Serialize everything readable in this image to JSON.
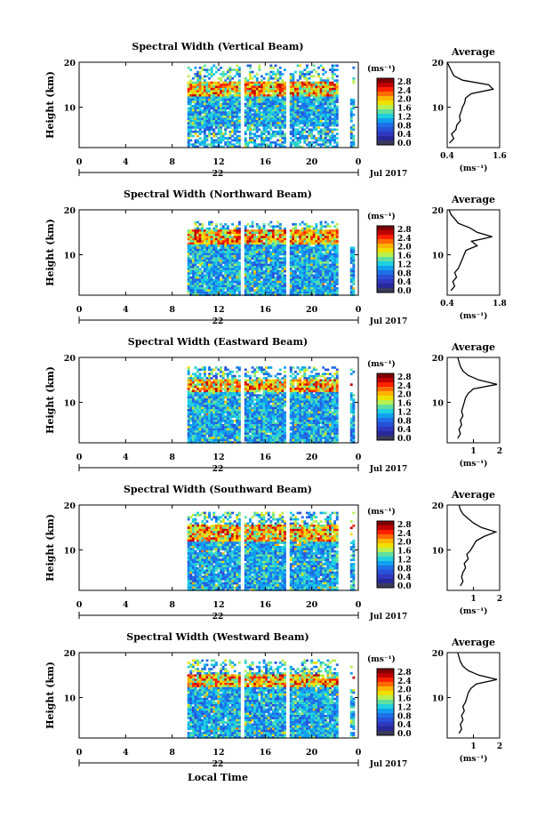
{
  "figure": {
    "xlabel": "Local Time",
    "date_label": "Jul 2017",
    "day_label": "22",
    "ylabel": "Height (km)",
    "unit_label": "(ms⁻¹)",
    "avg_unit_label": "(ms⁻¹)",
    "average_title": "Average"
  },
  "colorbar": {
    "ticks": [
      "2.8",
      "2.4",
      "2.0",
      "1.6",
      "1.2",
      "0.8",
      "0.4",
      "0.0"
    ],
    "colors": [
      "#7f0000",
      "#c00000",
      "#ff2000",
      "#ff6a00",
      "#ffb400",
      "#f0e000",
      "#b8f050",
      "#60e0a0",
      "#20d0e0",
      "#10a0f0",
      "#1e70e8",
      "#2850d8",
      "#3038c0",
      "#28289a",
      "#3a3a5a"
    ]
  },
  "chart_data": [
    {
      "type": "heatmap",
      "title": "Spectral Width (Vertical Beam)",
      "x_ticks": [
        "0",
        "4",
        "8",
        "12",
        "16",
        "20",
        "0"
      ],
      "xlim": [
        0,
        24
      ],
      "ylim": [
        1,
        20
      ],
      "y_ticks": [
        "10",
        "20"
      ],
      "data_spans": [
        [
          9.3,
          13.7
        ],
        [
          14.2,
          17.7
        ],
        [
          18.1,
          22.2
        ],
        [
          23.3,
          23.6
        ]
      ],
      "max_height": 19.5,
      "high_band": [
        12.5,
        16.0
      ],
      "sparse_below": 6.0,
      "average": {
        "title": "Average",
        "xlim": [
          0.4,
          1.6
        ],
        "x_ticks": [
          "0.4",
          "1.6"
        ],
        "ylim": [
          1,
          20
        ],
        "y_ticks": [
          "10",
          "20"
        ],
        "heights": [
          2,
          3,
          4,
          5,
          6,
          7,
          8,
          9,
          10,
          11,
          12,
          13,
          14,
          15,
          16,
          17,
          18,
          19,
          20
        ],
        "values": [
          0.45,
          0.55,
          0.5,
          0.6,
          0.62,
          0.7,
          0.68,
          0.72,
          0.75,
          0.8,
          0.82,
          0.95,
          1.45,
          1.35,
          0.75,
          0.55,
          0.5,
          0.45,
          0.4
        ]
      }
    },
    {
      "type": "heatmap",
      "title": "Spectral Width (Northward Beam)",
      "x_ticks": [
        "0",
        "4",
        "8",
        "12",
        "16",
        "20",
        "0"
      ],
      "xlim": [
        0,
        24
      ],
      "ylim": [
        1,
        20
      ],
      "y_ticks": [
        "10",
        "20"
      ],
      "data_spans": [
        [
          9.3,
          13.7
        ],
        [
          14.2,
          17.7
        ],
        [
          18.1,
          22.2
        ],
        [
          23.3,
          23.6
        ]
      ],
      "max_height": 17.5,
      "high_band": [
        12.5,
        16.0
      ],
      "sparse_below": 0,
      "average": {
        "title": "Average",
        "xlim": [
          0.4,
          1.8
        ],
        "x_ticks": [
          "0.4",
          "1.8"
        ],
        "ylim": [
          1,
          20
        ],
        "y_ticks": [
          "10",
          "20"
        ],
        "heights": [
          2,
          3,
          4,
          5,
          6,
          7,
          8,
          9,
          10,
          11,
          12,
          13,
          14,
          15,
          16,
          17,
          18,
          19,
          20
        ],
        "values": [
          0.5,
          0.6,
          0.55,
          0.65,
          0.6,
          0.7,
          0.75,
          0.8,
          0.85,
          0.9,
          1.2,
          1.05,
          1.6,
          1.2,
          1.0,
          0.7,
          0.6,
          0.5,
          0.45
        ]
      }
    },
    {
      "type": "heatmap",
      "title": "Spectral Width (Eastward Beam)",
      "x_ticks": [
        "0",
        "4",
        "8",
        "12",
        "16",
        "20",
        "0"
      ],
      "xlim": [
        0,
        24
      ],
      "ylim": [
        1,
        20
      ],
      "y_ticks": [
        "10",
        "20"
      ],
      "data_spans": [
        [
          9.3,
          13.7
        ],
        [
          14.2,
          17.7
        ],
        [
          18.1,
          22.2
        ],
        [
          23.3,
          23.6
        ]
      ],
      "max_height": 18.0,
      "high_band": [
        12.5,
        15.5
      ],
      "sparse_below": 0,
      "average": {
        "title": "Average",
        "xlim": [
          0,
          2
        ],
        "x_ticks": [
          "1",
          "2"
        ],
        "ylim": [
          1,
          20
        ],
        "y_ticks": [
          "10",
          "20"
        ],
        "heights": [
          2,
          3,
          4,
          5,
          6,
          7,
          8,
          9,
          10,
          11,
          12,
          13,
          14,
          15,
          16,
          17,
          18,
          19,
          20
        ],
        "values": [
          0.4,
          0.5,
          0.45,
          0.55,
          0.5,
          0.6,
          0.55,
          0.6,
          0.65,
          0.7,
          0.8,
          1.0,
          1.9,
          1.2,
          0.8,
          0.6,
          0.5,
          0.45,
          0.4
        ]
      }
    },
    {
      "type": "heatmap",
      "title": "Spectral Width (Southward Beam)",
      "x_ticks": [
        "0",
        "4",
        "8",
        "12",
        "16",
        "20",
        "0"
      ],
      "xlim": [
        0,
        24
      ],
      "ylim": [
        1,
        20
      ],
      "y_ticks": [
        "10",
        "20"
      ],
      "data_spans": [
        [
          9.3,
          13.7
        ],
        [
          14.2,
          17.7
        ],
        [
          18.1,
          22.2
        ],
        [
          23.3,
          23.6
        ]
      ],
      "max_height": 18.5,
      "high_band": [
        12.0,
        16.0
      ],
      "sparse_below": 0,
      "average": {
        "title": "Average",
        "xlim": [
          0,
          2
        ],
        "x_ticks": [
          "1",
          "2"
        ],
        "ylim": [
          1,
          20
        ],
        "y_ticks": [
          "10",
          "20"
        ],
        "heights": [
          2,
          3,
          4,
          5,
          6,
          7,
          8,
          9,
          10,
          11,
          12,
          13,
          14,
          15,
          16,
          17,
          18,
          19,
          20
        ],
        "values": [
          0.5,
          0.6,
          0.55,
          0.6,
          0.7,
          0.65,
          0.8,
          0.75,
          0.9,
          1.0,
          1.1,
          1.4,
          1.85,
          1.3,
          1.0,
          0.8,
          0.6,
          0.5,
          0.45
        ]
      }
    },
    {
      "type": "heatmap",
      "title": "Spectral Width (Westward Beam)",
      "x_ticks": [
        "0",
        "4",
        "8",
        "12",
        "16",
        "20",
        "0"
      ],
      "xlim": [
        0,
        24
      ],
      "ylim": [
        1,
        20
      ],
      "y_ticks": [
        "10",
        "20"
      ],
      "data_spans": [
        [
          9.3,
          13.7
        ],
        [
          14.2,
          17.7
        ],
        [
          18.1,
          22.2
        ],
        [
          23.3,
          23.6
        ]
      ],
      "max_height": 18.5,
      "high_band": [
        12.5,
        15.5
      ],
      "sparse_below": 0,
      "average": {
        "title": "Average",
        "xlim": [
          0,
          2
        ],
        "x_ticks": [
          "1",
          "2"
        ],
        "ylim": [
          1,
          20
        ],
        "y_ticks": [
          "10",
          "20"
        ],
        "heights": [
          2,
          3,
          4,
          5,
          6,
          7,
          8,
          9,
          10,
          11,
          12,
          13,
          14,
          15,
          16,
          17,
          18,
          19,
          20
        ],
        "values": [
          0.45,
          0.55,
          0.5,
          0.6,
          0.55,
          0.65,
          0.6,
          0.7,
          0.75,
          0.8,
          0.9,
          1.1,
          1.9,
          1.2,
          0.8,
          0.6,
          0.5,
          0.45,
          0.4
        ]
      }
    }
  ]
}
